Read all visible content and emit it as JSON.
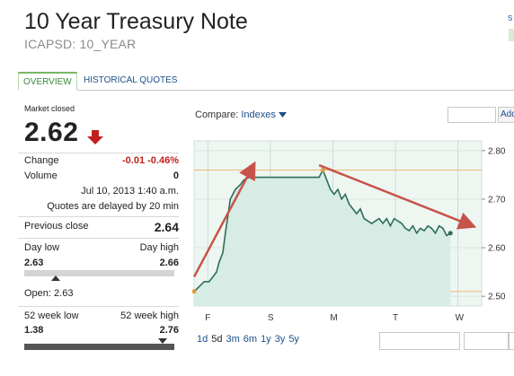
{
  "header": {
    "title": "10 Year Treasury Note",
    "symbol": "ICAPSD: 10_YEAR",
    "right_letter": "s"
  },
  "tabs": [
    {
      "label": "OVERVIEW",
      "active": true
    },
    {
      "label": "HISTORICAL QUOTES",
      "active": false
    }
  ],
  "quote": {
    "market_status": "Market closed",
    "price": "2.62",
    "direction": "down",
    "change_label": "Change",
    "change_value": "-0.01 -0.46%",
    "volume_label": "Volume",
    "volume_value": "0",
    "timestamp": "Jul 10, 2013 1:40 a.m.",
    "delay_note": "Quotes are delayed by 20 min",
    "prev_close_label": "Previous close",
    "prev_close_value": "2.64",
    "day_low_label": "Day low",
    "day_high_label": "Day high",
    "day_low": "2.63",
    "day_high": "2.66",
    "day_marker_fraction": 0.21,
    "open_label": "Open: 2.63",
    "wk52_low_label": "52 week low",
    "wk52_high_label": "52 week high",
    "wk52_low": "1.38",
    "wk52_high": "2.76",
    "wk52_marker_fraction": 0.92
  },
  "compare": {
    "label": "Compare:",
    "link": "Indexes",
    "button": "Add"
  },
  "ranges": [
    "1d",
    "5d",
    "3m",
    "6m",
    "1y",
    "3y",
    "5y"
  ],
  "selected_range": "5d",
  "colors": {
    "down": "#c0201e",
    "series_line": "#2e6e58",
    "area_fill": "#d6ece4",
    "trend_arrow": "#c8534a",
    "ref_line": "#f0b878",
    "link": "#1a4f8a"
  },
  "chart_data": {
    "type": "area",
    "x_tick_labels": [
      "F",
      "S",
      "M",
      "T",
      "W"
    ],
    "y_tick_labels": [
      "2.80",
      "2.70",
      "2.60",
      "2.50"
    ],
    "ylim": [
      2.48,
      2.82
    ],
    "ref_lines": [
      2.76,
      2.51
    ],
    "series": [
      {
        "x": [
          0,
          0.08,
          0.16,
          0.24,
          0.3,
          0.36,
          0.4,
          0.46,
          0.5,
          0.58,
          0.66,
          0.74,
          0.8,
          0.88,
          0.96,
          1.04,
          1.12,
          1.2,
          1.28,
          1.36,
          1.44,
          1.52,
          1.6,
          1.68,
          1.76,
          1.84,
          1.92,
          2.0,
          2.06,
          2.12,
          2.18,
          2.24,
          2.3,
          2.36,
          2.42,
          2.48,
          2.54,
          2.6,
          2.66,
          2.72,
          2.78,
          2.84,
          2.9,
          2.96,
          3.02,
          3.08,
          3.14,
          3.2,
          3.26,
          3.32,
          3.38,
          3.44,
          3.5,
          3.56,
          3.62,
          3.68,
          3.74,
          3.8,
          3.86,
          3.92,
          3.98,
          4.04,
          4.1
        ],
        "values": [
          2.51,
          2.52,
          2.53,
          2.53,
          2.54,
          2.55,
          2.57,
          2.59,
          2.63,
          2.7,
          2.72,
          2.73,
          2.74,
          2.745,
          2.745,
          2.745,
          2.745,
          2.745,
          2.745,
          2.745,
          2.745,
          2.745,
          2.745,
          2.745,
          2.745,
          2.745,
          2.745,
          2.745,
          2.76,
          2.74,
          2.72,
          2.71,
          2.72,
          2.7,
          2.71,
          2.69,
          2.68,
          2.67,
          2.68,
          2.66,
          2.655,
          2.65,
          2.655,
          2.66,
          2.65,
          2.66,
          2.645,
          2.66,
          2.655,
          2.65,
          2.64,
          2.635,
          2.645,
          2.63,
          2.64,
          2.635,
          2.645,
          2.64,
          2.63,
          2.645,
          2.64,
          2.625,
          2.63
        ]
      }
    ],
    "annotations": [
      {
        "type": "arrow",
        "from": [
          0.0,
          2.54
        ],
        "to": [
          0.95,
          2.77
        ]
      },
      {
        "type": "arrow",
        "from": [
          2.0,
          2.77
        ],
        "to": [
          4.45,
          2.645
        ]
      }
    ]
  }
}
